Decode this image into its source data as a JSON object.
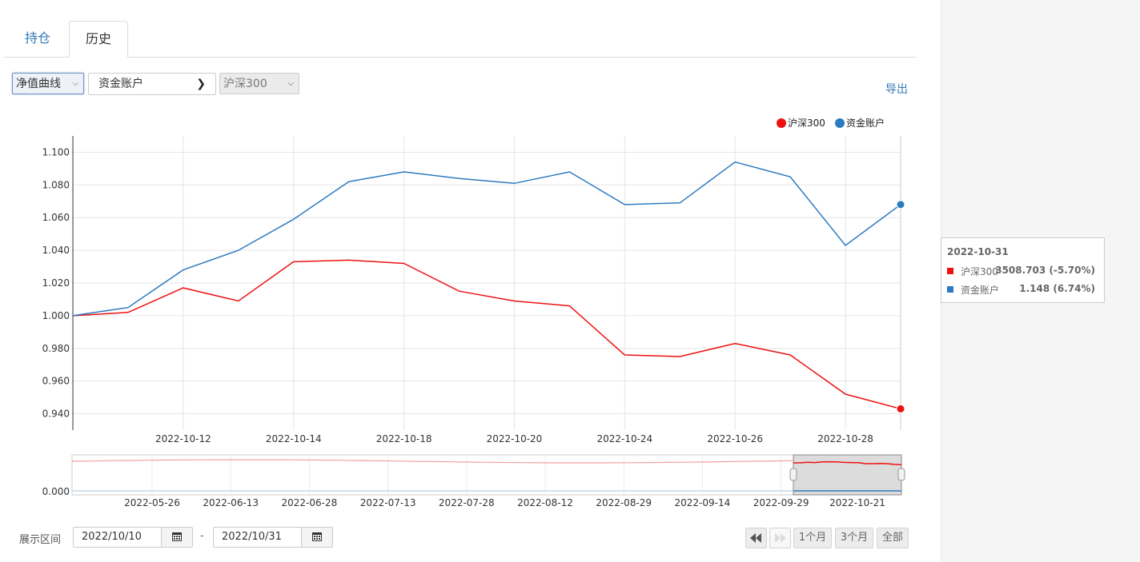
{
  "tabs": [
    {
      "label": "持仓"
    },
    {
      "label": "历史"
    }
  ],
  "controls": {
    "chart_type": "净值曲线",
    "account": "资金账户",
    "benchmark": "沪深300",
    "export_label": "导出"
  },
  "colors": {
    "benchmark": "#ee1111",
    "account": "#2c7bc0",
    "link": "#337ab7"
  },
  "chart_data": {
    "type": "line",
    "legend": [
      "沪深300",
      "资金账户"
    ],
    "legend_position": "top-right",
    "x": [
      "2022-10-10",
      "2022-10-11",
      "2022-10-12",
      "2022-10-13",
      "2022-10-14",
      "2022-10-17",
      "2022-10-18",
      "2022-10-19",
      "2022-10-20",
      "2022-10-21",
      "2022-10-24",
      "2022-10-25",
      "2022-10-26",
      "2022-10-27",
      "2022-10-28",
      "2022-10-31"
    ],
    "x_tick_labels": [
      "2022-10-12",
      "2022-10-14",
      "2022-10-18",
      "2022-10-20",
      "2022-10-24",
      "2022-10-26",
      "2022-10-28"
    ],
    "y_tick_labels": [
      "1.100",
      "1.080",
      "1.060",
      "1.040",
      "1.020",
      "1.000",
      "0.980",
      "0.960",
      "0.940"
    ],
    "ylim": [
      0.93,
      1.11
    ],
    "grid": true,
    "series": [
      {
        "name": "沪深300",
        "values": [
          1.0,
          1.002,
          1.017,
          1.009,
          1.033,
          1.034,
          1.032,
          1.015,
          1.009,
          1.006,
          0.976,
          0.975,
          0.983,
          0.976,
          0.952,
          0.943
        ]
      },
      {
        "name": "资金账户",
        "values": [
          1.0,
          1.005,
          1.028,
          1.04,
          1.059,
          1.082,
          1.088,
          1.084,
          1.081,
          1.088,
          1.068,
          1.069,
          1.094,
          1.085,
          1.043,
          1.068
        ]
      }
    ],
    "navigator": {
      "x_tick_labels": [
        "2022-05-26",
        "2022-06-13",
        "2022-06-28",
        "2022-07-13",
        "2022-07-28",
        "2022-08-12",
        "2022-08-29",
        "2022-09-14",
        "2022-09-29",
        "2022-10-21"
      ],
      "y_tick_label": "0.000"
    }
  },
  "tooltip": {
    "date": "2022-10-31",
    "rows": [
      {
        "name": "沪深300",
        "value": "3508.703 (-5.70%)"
      },
      {
        "name": "资金账户",
        "value": "1.148 (6.74%)"
      }
    ]
  },
  "range": {
    "label": "展示区间",
    "from": "2022/10/10",
    "dash": "-",
    "to": "2022/10/31"
  },
  "buttons": {
    "one_month": "1个月",
    "three_months": "3个月",
    "all": "全部"
  }
}
